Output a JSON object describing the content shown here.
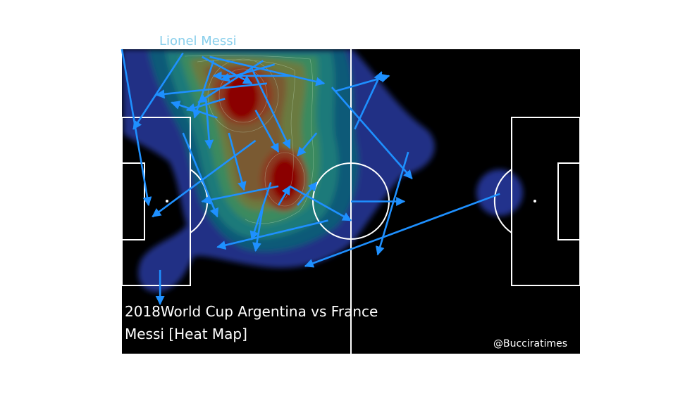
{
  "player_name": "Lionel Messi",
  "title_line1": "2018World Cup Argentina vs France",
  "title_line2": "Messi [Heat Map]",
  "credit": "@Bucciratimes",
  "colors": {
    "pitch": "#000000",
    "lines": "#ffffff",
    "passes": "#1e90ff",
    "player_label": "#87ceeb",
    "heat_low": "#22338c",
    "heat_high": "#8b0000"
  },
  "chart_data": {
    "type": "heatmap",
    "title": "2018World Cup Argentina vs France",
    "subtitle": "Messi [Heat Map]",
    "xlim": [
      0,
      120
    ],
    "ylim": [
      0,
      80
    ],
    "pitch": "statsbomb-120x80",
    "kde_peaks": [
      {
        "x": 31,
        "y": 14,
        "weight": 1.0
      },
      {
        "x": 42,
        "y": 35,
        "weight": 1.0
      }
    ],
    "passes": [
      {
        "x1": 0,
        "y1": 0,
        "x2": 7,
        "y2": 41
      },
      {
        "x1": 16,
        "y1": 1,
        "x2": 3,
        "y2": 21
      },
      {
        "x1": 23,
        "y1": 2,
        "x2": 53,
        "y2": 9
      },
      {
        "x1": 21,
        "y1": 2,
        "x2": 34,
        "y2": 9
      },
      {
        "x1": 37,
        "y1": 3,
        "x2": 20,
        "y2": 14
      },
      {
        "x1": 40,
        "y1": 4,
        "x2": 26,
        "y2": 8
      },
      {
        "x1": 34,
        "y1": 5,
        "x2": 44,
        "y2": 26
      },
      {
        "x1": 38,
        "y1": 9,
        "x2": 9,
        "y2": 12
      },
      {
        "x1": 44,
        "y1": 7,
        "x2": 24,
        "y2": 7
      },
      {
        "x1": 24,
        "y1": 3,
        "x2": 19,
        "y2": 18
      },
      {
        "x1": 27,
        "y1": 13,
        "x2": 17,
        "y2": 16
      },
      {
        "x1": 25,
        "y1": 18,
        "x2": 13,
        "y2": 14
      },
      {
        "x1": 22,
        "y1": 13,
        "x2": 23,
        "y2": 26
      },
      {
        "x1": 16,
        "y1": 22,
        "x2": 25,
        "y2": 44
      },
      {
        "x1": 35,
        "y1": 16,
        "x2": 41,
        "y2": 27
      },
      {
        "x1": 51,
        "y1": 22,
        "x2": 46,
        "y2": 28
      },
      {
        "x1": 56,
        "y1": 11,
        "x2": 70,
        "y2": 7
      },
      {
        "x1": 61,
        "y1": 21,
        "x2": 68,
        "y2": 6
      },
      {
        "x1": 55,
        "y1": 10,
        "x2": 76,
        "y2": 34
      },
      {
        "x1": 35,
        "y1": 24,
        "x2": 8,
        "y2": 44
      },
      {
        "x1": 28,
        "y1": 22,
        "x2": 32,
        "y2": 37
      },
      {
        "x1": 41,
        "y1": 36,
        "x2": 21,
        "y2": 40
      },
      {
        "x1": 44,
        "y1": 36,
        "x2": 60,
        "y2": 45
      },
      {
        "x1": 41,
        "y1": 41,
        "x2": 44,
        "y2": 36
      },
      {
        "x1": 39,
        "y1": 35,
        "x2": 34,
        "y2": 50
      },
      {
        "x1": 37,
        "y1": 41,
        "x2": 35,
        "y2": 53
      },
      {
        "x1": 46,
        "y1": 41,
        "x2": 51,
        "y2": 35
      },
      {
        "x1": 54,
        "y1": 45,
        "x2": 25,
        "y2": 52
      },
      {
        "x1": 60,
        "y1": 40,
        "x2": 74,
        "y2": 40
      },
      {
        "x1": 75,
        "y1": 27,
        "x2": 67,
        "y2": 54
      },
      {
        "x1": 99,
        "y1": 38,
        "x2": 48,
        "y2": 57
      },
      {
        "x1": 10,
        "y1": 58,
        "x2": 10,
        "y2": 67
      }
    ]
  }
}
